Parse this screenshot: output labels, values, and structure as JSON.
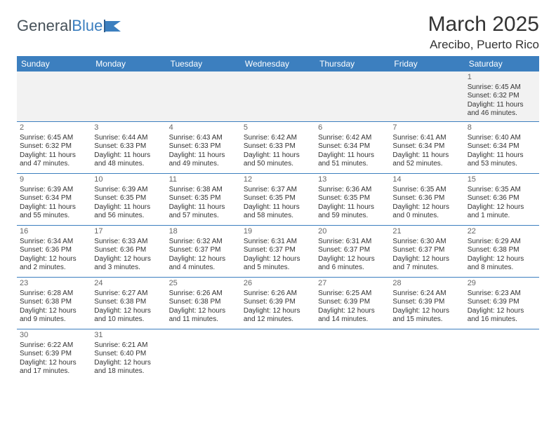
{
  "logo": {
    "text_a": "General",
    "text_b": "Blue"
  },
  "title": "March 2025",
  "location": "Arecibo, Puerto Rico",
  "colors": {
    "header_bg": "#3c7fbf",
    "header_text": "#ffffff",
    "rule": "#3c7fbf",
    "body_text": "#333333",
    "daynum": "#666666",
    "first_row_bg": "#f2f2f2"
  },
  "day_headers": [
    "Sunday",
    "Monday",
    "Tuesday",
    "Wednesday",
    "Thursday",
    "Friday",
    "Saturday"
  ],
  "weeks": [
    [
      null,
      null,
      null,
      null,
      null,
      null,
      {
        "n": "1",
        "sr": "Sunrise: 6:45 AM",
        "ss": "Sunset: 6:32 PM",
        "dl": "Daylight: 11 hours and 46 minutes."
      }
    ],
    [
      {
        "n": "2",
        "sr": "Sunrise: 6:45 AM",
        "ss": "Sunset: 6:32 PM",
        "dl": "Daylight: 11 hours and 47 minutes."
      },
      {
        "n": "3",
        "sr": "Sunrise: 6:44 AM",
        "ss": "Sunset: 6:33 PM",
        "dl": "Daylight: 11 hours and 48 minutes."
      },
      {
        "n": "4",
        "sr": "Sunrise: 6:43 AM",
        "ss": "Sunset: 6:33 PM",
        "dl": "Daylight: 11 hours and 49 minutes."
      },
      {
        "n": "5",
        "sr": "Sunrise: 6:42 AM",
        "ss": "Sunset: 6:33 PM",
        "dl": "Daylight: 11 hours and 50 minutes."
      },
      {
        "n": "6",
        "sr": "Sunrise: 6:42 AM",
        "ss": "Sunset: 6:34 PM",
        "dl": "Daylight: 11 hours and 51 minutes."
      },
      {
        "n": "7",
        "sr": "Sunrise: 6:41 AM",
        "ss": "Sunset: 6:34 PM",
        "dl": "Daylight: 11 hours and 52 minutes."
      },
      {
        "n": "8",
        "sr": "Sunrise: 6:40 AM",
        "ss": "Sunset: 6:34 PM",
        "dl": "Daylight: 11 hours and 53 minutes."
      }
    ],
    [
      {
        "n": "9",
        "sr": "Sunrise: 6:39 AM",
        "ss": "Sunset: 6:34 PM",
        "dl": "Daylight: 11 hours and 55 minutes."
      },
      {
        "n": "10",
        "sr": "Sunrise: 6:39 AM",
        "ss": "Sunset: 6:35 PM",
        "dl": "Daylight: 11 hours and 56 minutes."
      },
      {
        "n": "11",
        "sr": "Sunrise: 6:38 AM",
        "ss": "Sunset: 6:35 PM",
        "dl": "Daylight: 11 hours and 57 minutes."
      },
      {
        "n": "12",
        "sr": "Sunrise: 6:37 AM",
        "ss": "Sunset: 6:35 PM",
        "dl": "Daylight: 11 hours and 58 minutes."
      },
      {
        "n": "13",
        "sr": "Sunrise: 6:36 AM",
        "ss": "Sunset: 6:35 PM",
        "dl": "Daylight: 11 hours and 59 minutes."
      },
      {
        "n": "14",
        "sr": "Sunrise: 6:35 AM",
        "ss": "Sunset: 6:36 PM",
        "dl": "Daylight: 12 hours and 0 minutes."
      },
      {
        "n": "15",
        "sr": "Sunrise: 6:35 AM",
        "ss": "Sunset: 6:36 PM",
        "dl": "Daylight: 12 hours and 1 minute."
      }
    ],
    [
      {
        "n": "16",
        "sr": "Sunrise: 6:34 AM",
        "ss": "Sunset: 6:36 PM",
        "dl": "Daylight: 12 hours and 2 minutes."
      },
      {
        "n": "17",
        "sr": "Sunrise: 6:33 AM",
        "ss": "Sunset: 6:36 PM",
        "dl": "Daylight: 12 hours and 3 minutes."
      },
      {
        "n": "18",
        "sr": "Sunrise: 6:32 AM",
        "ss": "Sunset: 6:37 PM",
        "dl": "Daylight: 12 hours and 4 minutes."
      },
      {
        "n": "19",
        "sr": "Sunrise: 6:31 AM",
        "ss": "Sunset: 6:37 PM",
        "dl": "Daylight: 12 hours and 5 minutes."
      },
      {
        "n": "20",
        "sr": "Sunrise: 6:31 AM",
        "ss": "Sunset: 6:37 PM",
        "dl": "Daylight: 12 hours and 6 minutes."
      },
      {
        "n": "21",
        "sr": "Sunrise: 6:30 AM",
        "ss": "Sunset: 6:37 PM",
        "dl": "Daylight: 12 hours and 7 minutes."
      },
      {
        "n": "22",
        "sr": "Sunrise: 6:29 AM",
        "ss": "Sunset: 6:38 PM",
        "dl": "Daylight: 12 hours and 8 minutes."
      }
    ],
    [
      {
        "n": "23",
        "sr": "Sunrise: 6:28 AM",
        "ss": "Sunset: 6:38 PM",
        "dl": "Daylight: 12 hours and 9 minutes."
      },
      {
        "n": "24",
        "sr": "Sunrise: 6:27 AM",
        "ss": "Sunset: 6:38 PM",
        "dl": "Daylight: 12 hours and 10 minutes."
      },
      {
        "n": "25",
        "sr": "Sunrise: 6:26 AM",
        "ss": "Sunset: 6:38 PM",
        "dl": "Daylight: 12 hours and 11 minutes."
      },
      {
        "n": "26",
        "sr": "Sunrise: 6:26 AM",
        "ss": "Sunset: 6:39 PM",
        "dl": "Daylight: 12 hours and 12 minutes."
      },
      {
        "n": "27",
        "sr": "Sunrise: 6:25 AM",
        "ss": "Sunset: 6:39 PM",
        "dl": "Daylight: 12 hours and 14 minutes."
      },
      {
        "n": "28",
        "sr": "Sunrise: 6:24 AM",
        "ss": "Sunset: 6:39 PM",
        "dl": "Daylight: 12 hours and 15 minutes."
      },
      {
        "n": "29",
        "sr": "Sunrise: 6:23 AM",
        "ss": "Sunset: 6:39 PM",
        "dl": "Daylight: 12 hours and 16 minutes."
      }
    ],
    [
      {
        "n": "30",
        "sr": "Sunrise: 6:22 AM",
        "ss": "Sunset: 6:39 PM",
        "dl": "Daylight: 12 hours and 17 minutes."
      },
      {
        "n": "31",
        "sr": "Sunrise: 6:21 AM",
        "ss": "Sunset: 6:40 PM",
        "dl": "Daylight: 12 hours and 18 minutes."
      },
      null,
      null,
      null,
      null,
      null
    ]
  ]
}
